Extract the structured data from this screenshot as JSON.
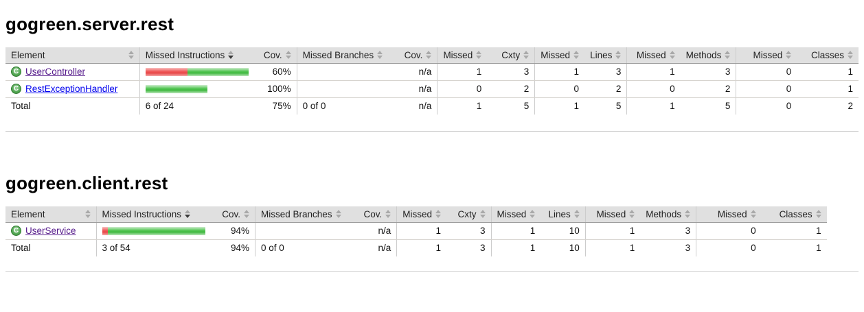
{
  "page": {
    "class_icon_letter": "C",
    "colors": {
      "header_bg": "#e0e0e0",
      "header_border": "#9e9e9e",
      "row_border": "#d6d3ce",
      "group_separator": "#cccccc",
      "bar_red": "#e84646",
      "bar_green": "#3eb83e",
      "link_unvisited": "#0000ee",
      "link_visited": "#551a8b",
      "class_icon_green": "#3c8c3c"
    }
  },
  "sections": [
    {
      "title": "gogreen.server.rest",
      "sort": {
        "column": "Missed Instructions",
        "direction": "desc"
      },
      "headers": {
        "element": "Element",
        "missed_instructions": "Missed Instructions",
        "cov1": "Cov.",
        "missed_branches": "Missed Branches",
        "cov2": "Cov.",
        "missed1": "Missed",
        "cxty": "Cxty",
        "missed2": "Missed",
        "lines": "Lines",
        "missed3": "Missed",
        "methods": "Methods",
        "missed4": "Missed",
        "classes": "Classes"
      },
      "rows": [
        {
          "element": "UserController",
          "link_state": "visited",
          "bar": {
            "red_width": 61,
            "green_width": 89
          },
          "cov1": "60%",
          "missed_branches": "",
          "cov2": "n/a",
          "missed1": "1",
          "cxty": "3",
          "missed2": "1",
          "lines": "3",
          "missed3": "1",
          "methods": "3",
          "missed4": "0",
          "classes": "1"
        },
        {
          "element": "RestExceptionHandler",
          "link_state": "unvisited",
          "bar": {
            "red_width": 0,
            "green_width": 90
          },
          "cov1": "100%",
          "missed_branches": "",
          "cov2": "n/a",
          "missed1": "0",
          "cxty": "2",
          "missed2": "0",
          "lines": "2",
          "missed3": "0",
          "methods": "2",
          "missed4": "0",
          "classes": "1"
        }
      ],
      "total": {
        "label": "Total",
        "missed_instructions": "6 of 24",
        "cov1": "75%",
        "missed_branches": "0 of 0",
        "cov2": "n/a",
        "missed1": "1",
        "cxty": "5",
        "missed2": "1",
        "lines": "5",
        "missed3": "1",
        "methods": "5",
        "missed4": "0",
        "classes": "2"
      }
    },
    {
      "title": "gogreen.client.rest",
      "sort": {
        "column": "Missed Instructions",
        "direction": "desc"
      },
      "headers": {
        "element": "Element",
        "missed_instructions": "Missed Instructions",
        "cov1": "Cov.",
        "missed_branches": "Missed Branches",
        "cov2": "Cov.",
        "missed1": "Missed",
        "cxty": "Cxty",
        "missed2": "Missed",
        "lines": "Lines",
        "missed3": "Missed",
        "methods": "Methods",
        "missed4": "Missed",
        "classes": "Classes"
      },
      "rows": [
        {
          "element": "UserService",
          "link_state": "visited",
          "bar": {
            "red_width": 8,
            "green_width": 142
          },
          "cov1": "94%",
          "missed_branches": "",
          "cov2": "n/a",
          "missed1": "1",
          "cxty": "3",
          "missed2": "1",
          "lines": "10",
          "missed3": "1",
          "methods": "3",
          "missed4": "0",
          "classes": "1"
        }
      ],
      "total": {
        "label": "Total",
        "missed_instructions": "3 of 54",
        "cov1": "94%",
        "missed_branches": "0 of 0",
        "cov2": "n/a",
        "missed1": "1",
        "cxty": "3",
        "missed2": "1",
        "lines": "10",
        "missed3": "1",
        "methods": "3",
        "missed4": "0",
        "classes": "1"
      }
    }
  ]
}
